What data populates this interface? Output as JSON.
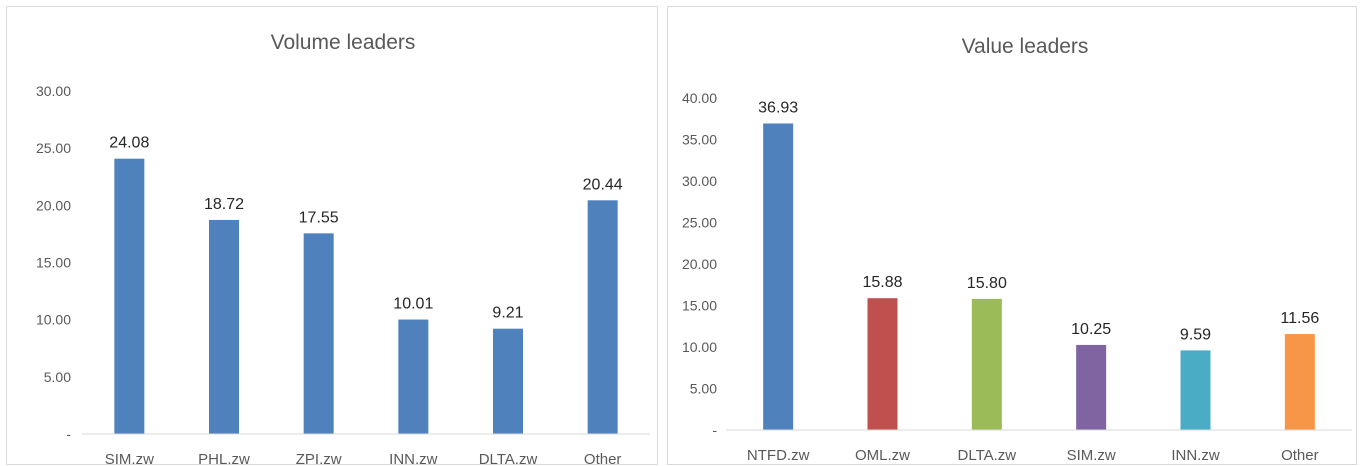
{
  "chart_data": [
    {
      "type": "bar",
      "title": "Volume leaders",
      "xlabel": "",
      "ylabel": "",
      "categories": [
        "SIM.zw",
        "PHL.zw",
        "ZPI.zw",
        "INN.zw",
        "DLTA.zw",
        "Other"
      ],
      "values": [
        24.08,
        18.72,
        17.55,
        10.01,
        9.21,
        20.44
      ],
      "data_labels": [
        "24.08",
        "18.72",
        "17.55",
        "10.01",
        "9.21",
        "20.44"
      ],
      "y_ticks": [
        "-",
        "5.00",
        "10.00",
        "15.00",
        "20.00",
        "25.00",
        "30.00"
      ],
      "ylim": [
        0,
        30
      ],
      "grid": false,
      "legend": "none",
      "colors": [
        "#4f81bd",
        "#4f81bd",
        "#4f81bd",
        "#4f81bd",
        "#4f81bd",
        "#4f81bd"
      ]
    },
    {
      "type": "bar",
      "title": "Value leaders",
      "xlabel": "",
      "ylabel": "",
      "categories": [
        "NTFD.zw",
        "OML.zw",
        "DLTA.zw",
        "SIM.zw",
        "INN.zw",
        "Other"
      ],
      "values": [
        36.93,
        15.88,
        15.8,
        10.25,
        9.59,
        11.56
      ],
      "data_labels": [
        "36.93",
        "15.88",
        "15.80",
        "10.25",
        "9.59",
        "11.56"
      ],
      "y_ticks": [
        "-",
        "5.00",
        "10.00",
        "15.00",
        "20.00",
        "25.00",
        "30.00",
        "35.00",
        "40.00"
      ],
      "ylim": [
        0,
        40
      ],
      "grid": false,
      "legend": "none",
      "colors": [
        "#4f81bd",
        "#c0504d",
        "#9bbb59",
        "#8064a2",
        "#4bacc6",
        "#f79646"
      ]
    }
  ]
}
